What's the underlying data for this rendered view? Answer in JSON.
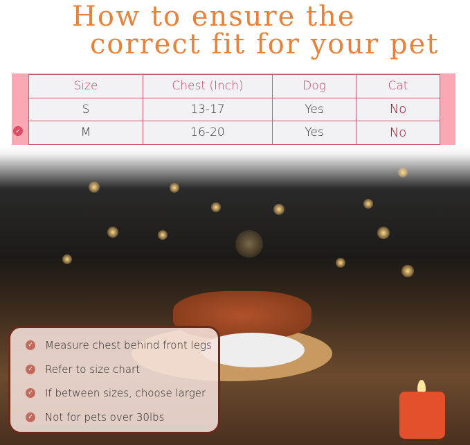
{
  "title": {
    "line1": "How to ensure the",
    "line2": "correct fit for your pet",
    "color": "#e8823a"
  },
  "table": {
    "headers": [
      "Size",
      "Chest (Inch)",
      "Dog",
      "Cat"
    ],
    "rows": [
      [
        "S",
        "13-17",
        "Yes",
        "No"
      ],
      [
        "M",
        "16-20",
        "Yes",
        "No"
      ]
    ],
    "selected_row": "M"
  },
  "tips": [
    "Measure chest behind front legs",
    "Refer to size chart",
    "If between sizes, choose larger",
    "Not for pets over 30lbs"
  ],
  "icons": {
    "check": "check-circle-icon"
  }
}
